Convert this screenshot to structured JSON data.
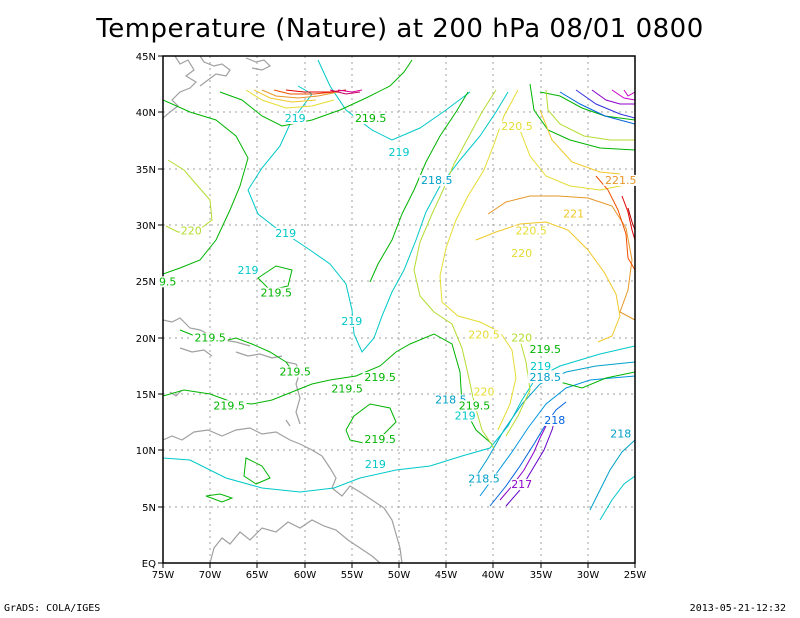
{
  "title": "Temperature (Nature) at 200 hPa 08/01 0800",
  "footer": {
    "left": "GrADS: COLA/IGES",
    "right": "2013-05-21-12:32"
  },
  "map": {
    "lon_ticks": [
      "75W",
      "70W",
      "65W",
      "60W",
      "55W",
      "50W",
      "45W",
      "40W",
      "35W",
      "30W",
      "25W"
    ],
    "lat_ticks": [
      "EQ",
      "5N",
      "10N",
      "15N",
      "20N",
      "25N",
      "30N",
      "35N",
      "40N",
      "45N"
    ],
    "lon_range": [
      -75,
      -25
    ],
    "lat_range": [
      0,
      45
    ],
    "gridlines": true,
    "colors": {
      "coast": "#a0a0a0",
      "grid": "#a0a0a0",
      "frame": "#000000"
    }
  },
  "contour_labels": [
    {
      "text": "219",
      "lon": -61,
      "lat": 39.5,
      "color": "#00c8c8"
    },
    {
      "text": "219.5",
      "lon": -53,
      "lat": 39.5,
      "color": "#00b400"
    },
    {
      "text": "219",
      "lon": -50,
      "lat": 36.5,
      "color": "#00c8c8"
    },
    {
      "text": "220.5",
      "lon": -37.5,
      "lat": 38.8,
      "color": "#e6dc32"
    },
    {
      "text": "218.5",
      "lon": -46,
      "lat": 34,
      "color": "#00a0c8"
    },
    {
      "text": "221.5",
      "lon": -26.5,
      "lat": 34,
      "color": "#e69628"
    },
    {
      "text": "221",
      "lon": -31.5,
      "lat": 31,
      "color": "#f0c828"
    },
    {
      "text": "220.5",
      "lon": -36,
      "lat": 29.5,
      "color": "#e6dc32"
    },
    {
      "text": "220",
      "lon": -72,
      "lat": 29.5,
      "color": "#b4dc32"
    },
    {
      "text": "219",
      "lon": -62,
      "lat": 29.3,
      "color": "#00c8c8"
    },
    {
      "text": "220",
      "lon": -37,
      "lat": 27.5,
      "color": "#e6dc32"
    },
    {
      "text": "219",
      "lon": -66,
      "lat": 26,
      "color": "#00c8c8"
    },
    {
      "text": "9.5",
      "lon": -74.5,
      "lat": 25,
      "color": "#00b400"
    },
    {
      "text": "219.5",
      "lon": -63,
      "lat": 24,
      "color": "#00b400"
    },
    {
      "text": "219",
      "lon": -55,
      "lat": 21.5,
      "color": "#00c8c8"
    },
    {
      "text": "219.5",
      "lon": -70,
      "lat": 20,
      "color": "#00b400"
    },
    {
      "text": "220.5",
      "lon": -41,
      "lat": 20.3,
      "color": "#e6dc32"
    },
    {
      "text": "220",
      "lon": -37,
      "lat": 20,
      "color": "#b4dc32"
    },
    {
      "text": "219.5",
      "lon": -34.5,
      "lat": 19,
      "color": "#00b400"
    },
    {
      "text": "219",
      "lon": -35,
      "lat": 17.5,
      "color": "#00c8c8"
    },
    {
      "text": "218.5",
      "lon": -34.5,
      "lat": 16.5,
      "color": "#00a0c8"
    },
    {
      "text": "219.5",
      "lon": -61,
      "lat": 17,
      "color": "#00b400"
    },
    {
      "text": "219.5",
      "lon": -52,
      "lat": 16.5,
      "color": "#00b400"
    },
    {
      "text": "219.5",
      "lon": -55.5,
      "lat": 15.5,
      "color": "#00b400"
    },
    {
      "text": "220",
      "lon": -41,
      "lat": 15.2,
      "color": "#e6dc32"
    },
    {
      "text": "218.5",
      "lon": -44.5,
      "lat": 14.5,
      "color": "#00a0c8"
    },
    {
      "text": "219.5",
      "lon": -42,
      "lat": 14,
      "color": "#00b400"
    },
    {
      "text": "219",
      "lon": -43,
      "lat": 13.1,
      "color": "#00c8c8"
    },
    {
      "text": "219.5",
      "lon": -68,
      "lat": 14,
      "color": "#00b400"
    },
    {
      "text": "218",
      "lon": -33.5,
      "lat": 12.7,
      "color": "#0064dc"
    },
    {
      "text": "218",
      "lon": -26.5,
      "lat": 11.5,
      "color": "#00a0c8"
    },
    {
      "text": "219.5",
      "lon": -52,
      "lat": 11,
      "color": "#00b400"
    },
    {
      "text": "219",
      "lon": -52.5,
      "lat": 8.8,
      "color": "#00c8c8"
    },
    {
      "text": "218.5",
      "lon": -41,
      "lat": 7.5,
      "color": "#00a0c8"
    },
    {
      "text": "217",
      "lon": -37,
      "lat": 7,
      "color": "#8c00c8"
    }
  ]
}
